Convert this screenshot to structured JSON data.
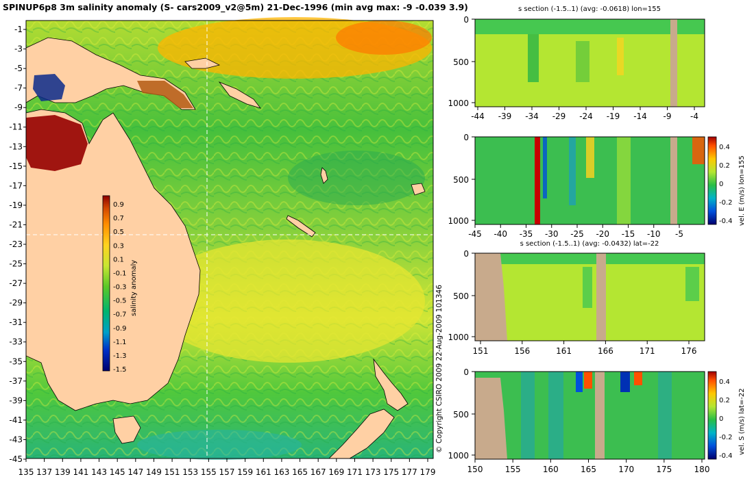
{
  "main": {
    "title": "SPINUP6p8 3m salinity anomaly (S- cars2009_v2@5m) 21-Dec-1996 (min avg max: -9 -0.039 3.9)",
    "lon_ticks": [
      "135",
      "137",
      "139",
      "141",
      "143",
      "145",
      "147",
      "149",
      "151",
      "153",
      "155",
      "157",
      "159",
      "161",
      "163",
      "165",
      "167",
      "169",
      "171",
      "173",
      "175",
      "177",
      "179"
    ],
    "lat_ticks": [
      "-1",
      "-3",
      "-5",
      "-7",
      "-9",
      "-11",
      "-13",
      "-15",
      "-17",
      "-19",
      "-21",
      "-23",
      "-25",
      "-27",
      "-29",
      "-31",
      "-33",
      "-35",
      "-37",
      "-39",
      "-41",
      "-43",
      "-45"
    ],
    "colorbar": {
      "label": "salinity anomaly",
      "ticks": [
        "0.9",
        "0.7",
        "0.5",
        "0.3",
        "0.1",
        "-0.1",
        "-0.3",
        "-0.5",
        "-0.7",
        "-0.9",
        "-1.1",
        "-1.3",
        "-1.5"
      ]
    },
    "section_lines": {
      "lon": 155,
      "lat": -22
    }
  },
  "copyright": "© Copyright CSIRO 2009   22-Aug-2009 101346",
  "panels": [
    {
      "title": "s section (-1.5..1) (avg: -0.0618) lon=155",
      "yticks": [
        "0",
        "500",
        "1000"
      ],
      "xticks": [
        "-44",
        "-39",
        "-34",
        "-29",
        "-24",
        "-19",
        "-14",
        "-9",
        "-4"
      ]
    },
    {
      "title": "",
      "yticks": [
        "0",
        "500",
        "1000"
      ],
      "xticks": [
        "-45",
        "-40",
        "-35",
        "-30",
        "-25",
        "-20",
        "-15",
        "-10",
        "-5"
      ],
      "cbar_ticks": [
        "0.4",
        "0.2",
        "0",
        "-0.2",
        "-0.4"
      ],
      "cbar_label": "vel. E (m/s) lon=155"
    },
    {
      "title": "s section (-1.5..1) (avg: -0.0432) lat=-22",
      "yticks": [
        "0",
        "500",
        "1000"
      ],
      "xticks": [
        "151",
        "156",
        "161",
        "166",
        "171",
        "176"
      ]
    },
    {
      "title": "",
      "yticks": [
        "0",
        "500",
        "1000"
      ],
      "xticks": [
        "150",
        "155",
        "160",
        "165",
        "170",
        "175",
        "180"
      ],
      "cbar_ticks": [
        "0.4",
        "0.2",
        "0",
        "-0.2",
        "-0.4"
      ],
      "cbar_label": "vel. S (m/s) lat=-22"
    }
  ],
  "colors": {
    "land": "#ffd0a4",
    "section_land": "#c8aa8c",
    "ocean_mid": "#4cc83c",
    "ocean_warm": "#c8e832"
  }
}
